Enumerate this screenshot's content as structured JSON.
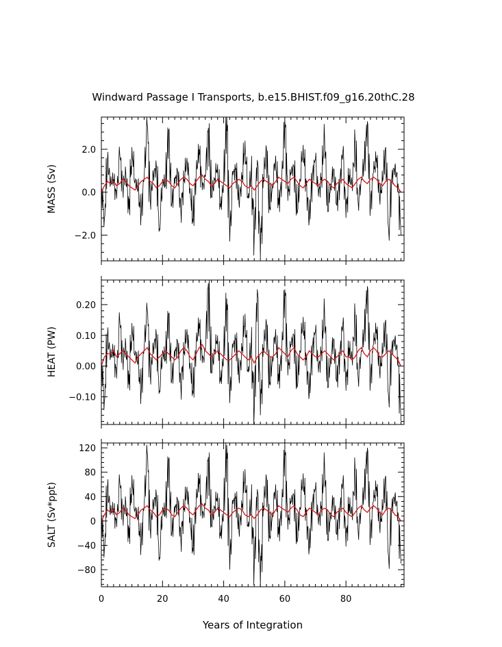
{
  "title": "Windward Passage I Transports, b.e15.BHIST.f09_g16.20thC.28",
  "xlabel": "Years of Integration",
  "colors": {
    "raw": "#000000",
    "smooth": "#d62020",
    "axis": "#000000"
  },
  "chart_data": [
    {
      "type": "line",
      "ylabel": "MASS (Sv)",
      "xlim": [
        0,
        99
      ],
      "ylim": [
        -3.2,
        3.5
      ],
      "x_ticks": [
        0,
        20,
        40,
        60,
        80
      ],
      "x_tick_labels": [
        "0",
        "20",
        "40",
        "60",
        "80"
      ],
      "y_ticks": [
        -2.0,
        0.0,
        2.0
      ],
      "y_tick_labels": [
        "−2.0",
        "0.0",
        "2.0"
      ],
      "series": [
        {
          "values": [
            0.3,
            -1.2,
            1.5,
            0.4,
            0.6,
            -0.3,
            1.8,
            0.2,
            0.9,
            -0.8,
            2.1,
            0.5,
            0.1,
            -1.1,
            0.7,
            3.1,
            -0.4,
            0.8,
            1.2,
            -1.7,
            0.6,
            0.3,
            2.9,
            -0.6,
            0.4,
            1.0,
            -0.9,
            0.5,
            1.6,
            0.2,
            -1.4,
            0.9,
            2.0,
            0.1,
            0.7,
            3.0,
            -0.2,
            0.6,
            1.3,
            -0.7,
            0.4,
            3.5,
            -2.3,
            0.8,
            1.1,
            -0.5,
            0.6,
            2.4,
            -0.3,
            0.9,
            -2.1,
            1.5,
            -3.1,
            0.7,
            2.0,
            -0.8,
            0.4,
            1.7,
            -0.6,
            0.5,
            3.3,
            -0.4,
            0.9,
            1.2,
            -1.0,
            0.6,
            2.2,
            0.3,
            -1.3,
            0.8,
            1.5,
            -0.2,
            0.7,
            2.6,
            -0.9,
            0.4,
            1.1,
            -0.6,
            0.5,
            1.9,
            -1.2,
            0.8,
            0.3,
            2.3,
            -0.5,
            0.6,
            1.4,
            3.3,
            -0.7,
            0.9,
            1.6,
            -0.3,
            0.5,
            2.1,
            -1.9,
            0.7,
            1.2,
            0.4,
            -2.0
          ]
        },
        {
          "values": [
            0.0,
            0.3,
            0.5,
            0.4,
            0.5,
            0.3,
            0.4,
            0.6,
            0.5,
            0.3,
            0.2,
            0.1,
            0.3,
            0.5,
            0.6,
            0.7,
            0.5,
            0.4,
            0.2,
            0.3,
            0.5,
            0.6,
            0.5,
            0.3,
            0.2,
            0.4,
            0.6,
            0.7,
            0.6,
            0.4,
            0.3,
            0.5,
            0.7,
            0.8,
            0.6,
            0.5,
            0.3,
            0.4,
            0.6,
            0.5,
            0.4,
            0.3,
            0.2,
            0.4,
            0.5,
            0.6,
            0.5,
            0.3,
            0.2,
            0.3,
            0.1,
            0.3,
            0.5,
            0.6,
            0.5,
            0.4,
            0.3,
            0.5,
            0.7,
            0.6,
            0.5,
            0.4,
            0.6,
            0.7,
            0.5,
            0.3,
            0.2,
            0.4,
            0.6,
            0.5,
            0.4,
            0.3,
            0.5,
            0.6,
            0.5,
            0.3,
            0.2,
            0.4,
            0.5,
            0.6,
            0.4,
            0.3,
            0.2,
            0.4,
            0.6,
            0.7,
            0.5,
            0.4,
            0.6,
            0.7,
            0.6,
            0.4,
            0.3,
            0.5,
            0.6,
            0.5,
            0.3,
            0.2,
            0.0
          ]
        }
      ]
    },
    {
      "type": "line",
      "ylabel": "HEAT (PW)",
      "xlim": [
        0,
        99
      ],
      "ylim": [
        -0.19,
        0.28
      ],
      "x_ticks": [
        0,
        20,
        40,
        60,
        80
      ],
      "x_tick_labels": [
        "0",
        "20",
        "40",
        "60",
        "80"
      ],
      "y_ticks": [
        -0.1,
        0.0,
        0.1,
        0.2
      ],
      "y_tick_labels": [
        "−0.10",
        "0.00",
        "0.10",
        "0.20"
      ],
      "series": [
        {
          "values": [
            0.02,
            -0.11,
            0.1,
            0.03,
            0.05,
            -0.04,
            0.15,
            0.02,
            0.07,
            -0.06,
            0.14,
            0.04,
            0.01,
            -0.09,
            0.06,
            0.18,
            -0.03,
            0.06,
            0.1,
            -0.08,
            0.05,
            0.02,
            0.17,
            -0.05,
            0.03,
            0.08,
            -0.07,
            0.04,
            0.12,
            0.01,
            -0.09,
            0.07,
            0.14,
            0.01,
            0.05,
            0.27,
            -0.02,
            0.05,
            0.1,
            -0.05,
            0.03,
            0.22,
            -0.12,
            0.06,
            0.09,
            -0.04,
            0.05,
            0.17,
            -0.02,
            0.07,
            -0.15,
            0.25,
            -0.16,
            0.06,
            0.14,
            -0.06,
            0.03,
            0.12,
            -0.05,
            0.04,
            0.25,
            -0.03,
            0.07,
            0.1,
            -0.07,
            0.05,
            0.16,
            0.02,
            -0.09,
            0.06,
            0.11,
            -0.02,
            0.05,
            0.18,
            -0.07,
            0.03,
            0.09,
            -0.05,
            0.04,
            0.14,
            -0.08,
            0.06,
            0.02,
            0.16,
            -0.04,
            0.05,
            0.11,
            0.26,
            -0.05,
            0.07,
            0.12,
            -0.02,
            0.04,
            0.15,
            -0.11,
            0.06,
            0.09,
            0.03,
            -0.18
          ]
        },
        {
          "values": [
            0.0,
            0.03,
            0.04,
            0.04,
            0.05,
            0.03,
            0.04,
            0.05,
            0.04,
            0.03,
            0.02,
            0.01,
            0.03,
            0.04,
            0.05,
            0.06,
            0.04,
            0.03,
            0.02,
            0.03,
            0.04,
            0.05,
            0.04,
            0.03,
            0.02,
            0.03,
            0.05,
            0.06,
            0.05,
            0.03,
            0.02,
            0.04,
            0.06,
            0.07,
            0.05,
            0.04,
            0.03,
            0.04,
            0.05,
            0.04,
            0.03,
            0.02,
            0.02,
            0.03,
            0.04,
            0.05,
            0.04,
            0.03,
            0.02,
            0.03,
            0.01,
            0.03,
            0.04,
            0.05,
            0.04,
            0.03,
            0.03,
            0.04,
            0.06,
            0.05,
            0.04,
            0.03,
            0.05,
            0.06,
            0.04,
            0.03,
            0.02,
            0.03,
            0.05,
            0.04,
            0.03,
            0.03,
            0.04,
            0.05,
            0.04,
            0.03,
            0.02,
            0.03,
            0.04,
            0.05,
            0.03,
            0.03,
            0.02,
            0.03,
            0.05,
            0.06,
            0.04,
            0.03,
            0.05,
            0.06,
            0.05,
            0.03,
            0.03,
            0.04,
            0.05,
            0.04,
            0.03,
            0.02,
            0.0
          ]
        }
      ]
    },
    {
      "type": "line",
      "ylabel": "SALT (Sv*ppt)",
      "xlim": [
        0,
        99
      ],
      "ylim": [
        -108,
        128
      ],
      "x_ticks": [
        0,
        20,
        40,
        60,
        80
      ],
      "x_tick_labels": [
        "0",
        "20",
        "40",
        "60",
        "80"
      ],
      "y_ticks": [
        -80,
        -40,
        0,
        40,
        80,
        120
      ],
      "y_tick_labels": [
        "−80",
        "−40",
        "0",
        "40",
        "80",
        "120"
      ],
      "series": [
        {
          "values": [
            10,
            -45,
            55,
            15,
            20,
            -10,
            65,
            8,
            30,
            -28,
            75,
            18,
            4,
            -40,
            25,
            110,
            -14,
            28,
            42,
            -60,
            22,
            10,
            102,
            -22,
            14,
            35,
            -32,
            18,
            56,
            6,
            -50,
            32,
            70,
            4,
            25,
            105,
            -8,
            22,
            46,
            -25,
            14,
            125,
            -80,
            28,
            39,
            -18,
            22,
            85,
            -10,
            32,
            -75,
            52,
            -108,
            25,
            70,
            -28,
            14,
            60,
            -22,
            18,
            118,
            -14,
            32,
            42,
            -35,
            22,
            78,
            10,
            -46,
            28,
            52,
            -6,
            25,
            92,
            -32,
            14,
            39,
            -22,
            18,
            66,
            -42,
            28,
            10,
            82,
            -18,
            22,
            50,
            120,
            -25,
            32,
            56,
            -10,
            18,
            74,
            -66,
            25,
            42,
            14,
            -70
          ]
        },
        {
          "values": [
            0,
            10,
            18,
            14,
            18,
            10,
            14,
            21,
            18,
            10,
            7,
            4,
            10,
            18,
            21,
            25,
            18,
            14,
            7,
            10,
            18,
            21,
            18,
            10,
            7,
            14,
            21,
            25,
            21,
            14,
            10,
            18,
            25,
            28,
            21,
            18,
            10,
            14,
            21,
            18,
            14,
            10,
            7,
            14,
            18,
            21,
            18,
            10,
            7,
            10,
            4,
            10,
            18,
            21,
            18,
            14,
            10,
            18,
            25,
            21,
            18,
            14,
            21,
            25,
            18,
            10,
            7,
            14,
            21,
            18,
            14,
            10,
            18,
            21,
            18,
            10,
            7,
            14,
            18,
            21,
            14,
            10,
            7,
            14,
            21,
            25,
            18,
            14,
            21,
            25,
            21,
            14,
            10,
            18,
            21,
            18,
            10,
            7,
            0
          ]
        }
      ]
    }
  ]
}
